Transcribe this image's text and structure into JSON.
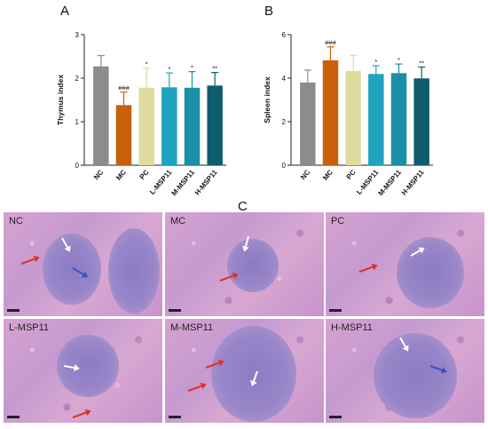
{
  "panels": {
    "a_letter": "A",
    "b_letter": "B",
    "c_letter": "C"
  },
  "chart_data": [
    {
      "type": "bar",
      "panel": "A",
      "ylabel": "Thymus index",
      "categories": [
        "NC",
        "MC",
        "PC",
        "L-MSP11",
        "M-MSP11",
        "H-MSP11"
      ],
      "values": [
        2.27,
        1.38,
        1.78,
        1.79,
        1.78,
        1.83
      ],
      "errors": [
        0.25,
        0.3,
        0.45,
        0.33,
        0.37,
        0.3
      ],
      "significance": [
        "",
        "###",
        "*",
        "*",
        "*",
        "**"
      ],
      "ylim": [
        0,
        3
      ],
      "yticks": [
        "0",
        "1",
        "2",
        "3"
      ],
      "colors": [
        "#8c8c8c",
        "#c8600a",
        "#dedba0",
        "#1fa3be",
        "#1a8fa6",
        "#0f5c6e"
      ]
    },
    {
      "type": "bar",
      "panel": "B",
      "ylabel": "Spleen index",
      "categories": [
        "NC",
        "MC",
        "PC",
        "L-MSP11",
        "M-MSP11",
        "H-MSP11"
      ],
      "values": [
        3.8,
        4.82,
        4.33,
        4.19,
        4.23,
        3.99
      ],
      "errors": [
        0.57,
        0.62,
        0.72,
        0.38,
        0.42,
        0.52
      ],
      "significance": [
        "",
        "###",
        "",
        "*",
        "*",
        "**"
      ],
      "ylim": [
        0,
        6
      ],
      "yticks": [
        "0",
        "2",
        "4",
        "6"
      ],
      "colors": [
        "#8c8c8c",
        "#c8600a",
        "#dedba0",
        "#1fa3be",
        "#1a8fa6",
        "#0f5c6e"
      ]
    }
  ],
  "micrographs": [
    {
      "label": "NC"
    },
    {
      "label": "MC"
    },
    {
      "label": "PC"
    },
    {
      "label": "L-MSP11"
    },
    {
      "label": "M-MSP11"
    },
    {
      "label": "H-MSP11"
    }
  ]
}
